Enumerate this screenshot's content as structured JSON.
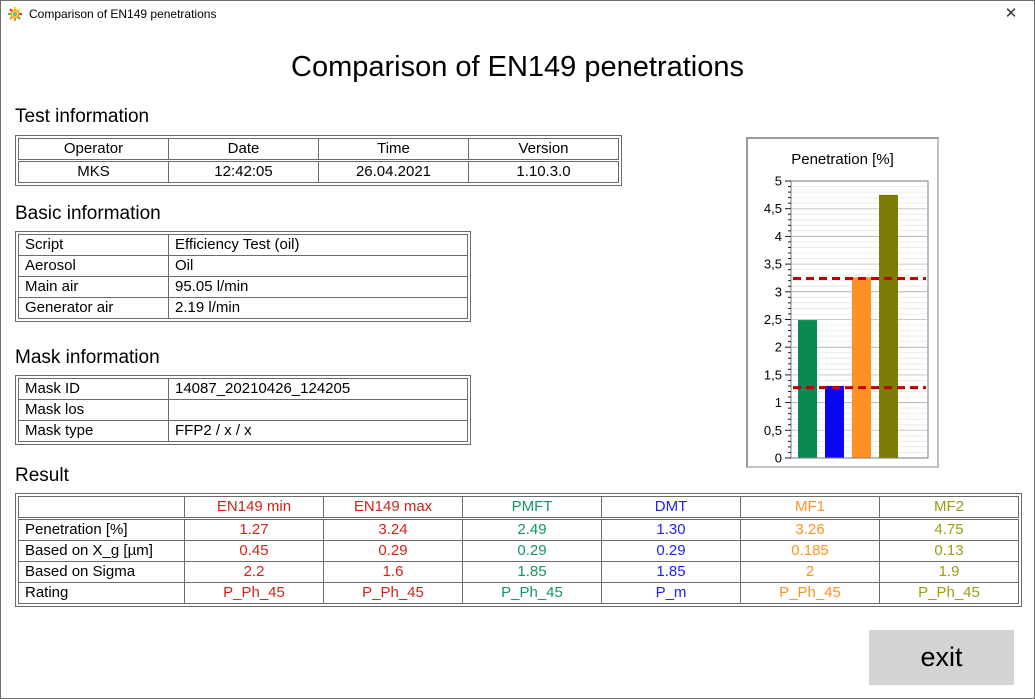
{
  "window": {
    "title": "Comparison of EN149 penetrations",
    "close_glyph": "✕"
  },
  "page": {
    "title": "Comparison of EN149 penetrations"
  },
  "sections": {
    "test_information": {
      "heading": "Test information",
      "columns": [
        "Operator",
        "Date",
        "Time",
        "Version"
      ],
      "values": [
        "MKS",
        "12:42:05",
        "26.04.2021",
        "1.10.3.0"
      ]
    },
    "basic_information": {
      "heading": "Basic information",
      "rows": [
        [
          "Script",
          "Efficiency Test (oil)"
        ],
        [
          "Aerosol",
          "Oil"
        ],
        [
          "Main air",
          "95.05 l/min"
        ],
        [
          "Generator air",
          "2.19 l/min"
        ]
      ]
    },
    "mask_information": {
      "heading": "Mask information",
      "rows": [
        [
          "Mask ID",
          "14087_20210426_124205"
        ],
        [
          "Mask los",
          ""
        ],
        [
          "Mask type",
          "FFP2 / x / x"
        ]
      ]
    },
    "result": {
      "heading": "Result",
      "columns": [
        {
          "label": "EN149 min",
          "color": "#d02318"
        },
        {
          "label": "EN149 max",
          "color": "#d02318"
        },
        {
          "label": "PMFT",
          "color": "#14965f"
        },
        {
          "label": "DMT",
          "color": "#2222e8"
        },
        {
          "label": "MF1",
          "color": "#ff9122"
        },
        {
          "label": "MF2",
          "color": "#9c9c10"
        }
      ],
      "rows": [
        {
          "label": "Penetration [%]",
          "values": [
            "1.27",
            "3.24",
            "2.49",
            "1.30",
            "3.26",
            "4.75"
          ]
        },
        {
          "label": "Based on X_g [µm]",
          "values": [
            "0.45",
            "0.29",
            "0.29",
            "0.29",
            "0.185",
            "0.13"
          ]
        },
        {
          "label": "Based on Sigma",
          "values": [
            "2.2",
            "1.6",
            "1.85",
            "1.85",
            "2",
            "1.9"
          ]
        },
        {
          "label": "Rating",
          "values": [
            "P_Ph_45",
            "P_Ph_45",
            "P_Ph_45",
            "P_m",
            "P_Ph_45",
            "P_Ph_45"
          ]
        }
      ]
    }
  },
  "chart_data": {
    "type": "bar",
    "title": "Penetration [%]",
    "categories": [
      "PMFT",
      "DMT",
      "MF1",
      "MF2"
    ],
    "values": [
      2.49,
      1.3,
      3.26,
      4.75
    ],
    "bar_colors": [
      "#0a8a52",
      "#0808f0",
      "#ff9122",
      "#7c7c04"
    ],
    "ylim": [
      0,
      5
    ],
    "ytick_step": 0.5,
    "minor_tick_step": 0.1,
    "ytick_labels": [
      "0",
      "0,5",
      "1",
      "1,5",
      "2",
      "2,5",
      "3",
      "3,5",
      "4",
      "4,5",
      "5"
    ],
    "reference_lines": [
      {
        "name": "EN149 min",
        "value": 1.27,
        "color": "#c00000",
        "style": "dashed"
      },
      {
        "name": "EN149 max",
        "value": 3.24,
        "color": "#c00000",
        "style": "dashed"
      }
    ],
    "grid": true,
    "legend": "none",
    "xlabel": "",
    "ylabel": ""
  },
  "exit_button": {
    "label": "exit"
  }
}
